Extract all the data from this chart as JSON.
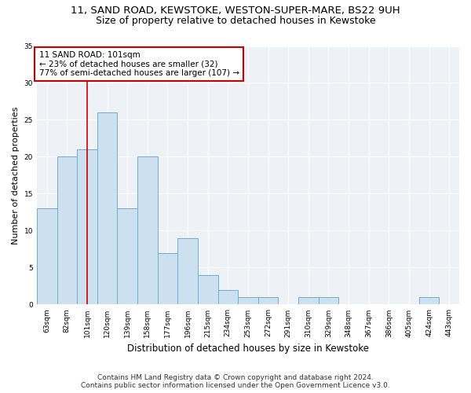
{
  "title1": "11, SAND ROAD, KEWSTOKE, WESTON-SUPER-MARE, BS22 9UH",
  "title2": "Size of property relative to detached houses in Kewstoke",
  "xlabel": "Distribution of detached houses by size in Kewstoke",
  "ylabel": "Number of detached properties",
  "categories": [
    "63sqm",
    "82sqm",
    "101sqm",
    "120sqm",
    "139sqm",
    "158sqm",
    "177sqm",
    "196sqm",
    "215sqm",
    "234sqm",
    "253sqm",
    "272sqm",
    "291sqm",
    "310sqm",
    "329sqm",
    "348sqm",
    "367sqm",
    "386sqm",
    "405sqm",
    "424sqm",
    "443sqm"
  ],
  "values": [
    13,
    20,
    21,
    26,
    13,
    20,
    7,
    9,
    4,
    2,
    1,
    1,
    0,
    1,
    1,
    0,
    0,
    0,
    0,
    1,
    0
  ],
  "bar_color": "#cce0f0",
  "bar_edge_color": "#6baed6",
  "highlight_bar_index": 2,
  "highlight_line_color": "#cc0000",
  "annotation_text": "11 SAND ROAD: 101sqm\n← 23% of detached houses are smaller (32)\n77% of semi-detached houses are larger (107) →",
  "annotation_box_color": "#ffffff",
  "annotation_box_edge": "#cc0000",
  "ylim": [
    0,
    35
  ],
  "yticks": [
    0,
    5,
    10,
    15,
    20,
    25,
    30,
    35
  ],
  "bg_color": "#eef2f7",
  "grid_color": "#ffffff",
  "footer1": "Contains HM Land Registry data © Crown copyright and database right 2024.",
  "footer2": "Contains public sector information licensed under the Open Government Licence v3.0.",
  "title1_fontsize": 9.5,
  "title2_fontsize": 9.0,
  "xlabel_fontsize": 8.5,
  "ylabel_fontsize": 8.0,
  "tick_fontsize": 6.5,
  "annotation_fontsize": 7.5,
  "footer_fontsize": 6.5
}
